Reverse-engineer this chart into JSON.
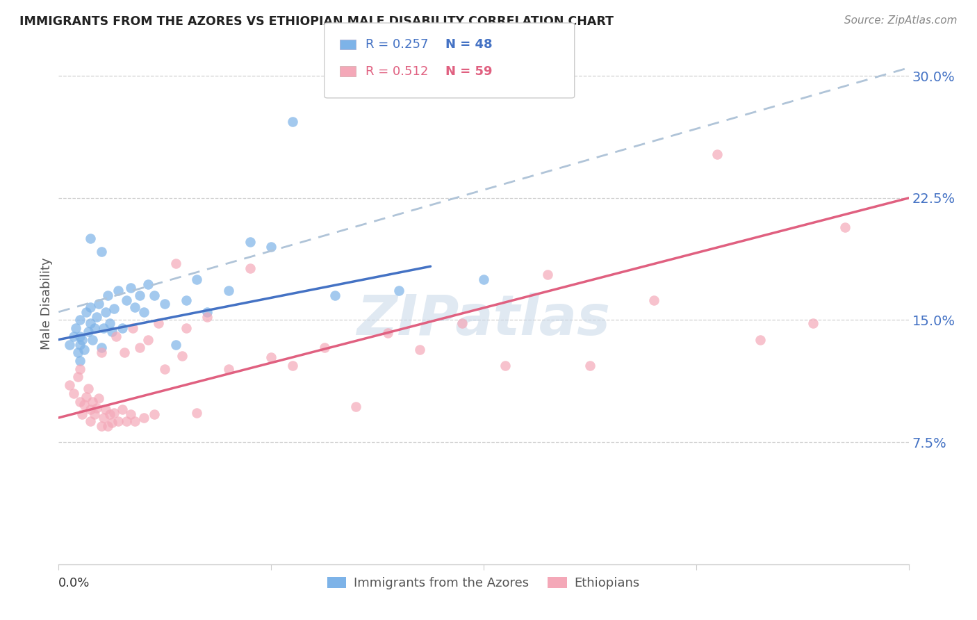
{
  "title": "IMMIGRANTS FROM THE AZORES VS ETHIOPIAN MALE DISABILITY CORRELATION CHART",
  "source": "Source: ZipAtlas.com",
  "ylabel": "Male Disability",
  "xlim": [
    0.0,
    0.4
  ],
  "ylim": [
    0.0,
    0.32
  ],
  "watermark": "ZIPatlas",
  "legend_r1": "R = 0.257",
  "legend_n1": "N = 48",
  "legend_r2": "R = 0.512",
  "legend_n2": "N = 59",
  "legend_label1": "Immigrants from the Azores",
  "legend_label2": "Ethiopians",
  "blue_dot_color": "#7db3e8",
  "pink_dot_color": "#f4a8b8",
  "blue_line_color": "#4472c4",
  "pink_line_color": "#e06080",
  "dashed_line_color": "#b0c4d8",
  "blue_line_x": [
    0.0,
    0.175
  ],
  "blue_line_y": [
    0.138,
    0.183
  ],
  "pink_line_x": [
    0.0,
    0.4
  ],
  "pink_line_y": [
    0.09,
    0.225
  ],
  "dashed_line_x": [
    0.0,
    0.4
  ],
  "dashed_line_y": [
    0.155,
    0.305
  ],
  "azores_x": [
    0.005,
    0.007,
    0.008,
    0.009,
    0.01,
    0.01,
    0.01,
    0.01,
    0.011,
    0.012,
    0.013,
    0.014,
    0.015,
    0.015,
    0.015,
    0.016,
    0.017,
    0.018,
    0.019,
    0.02,
    0.02,
    0.021,
    0.022,
    0.023,
    0.024,
    0.025,
    0.026,
    0.028,
    0.03,
    0.032,
    0.034,
    0.036,
    0.038,
    0.04,
    0.042,
    0.045,
    0.05,
    0.055,
    0.06,
    0.065,
    0.07,
    0.08,
    0.09,
    0.1,
    0.11,
    0.13,
    0.16,
    0.2
  ],
  "azores_y": [
    0.135,
    0.14,
    0.145,
    0.13,
    0.125,
    0.135,
    0.14,
    0.15,
    0.138,
    0.132,
    0.155,
    0.143,
    0.148,
    0.158,
    0.2,
    0.138,
    0.145,
    0.152,
    0.16,
    0.133,
    0.192,
    0.145,
    0.155,
    0.165,
    0.148,
    0.143,
    0.157,
    0.168,
    0.145,
    0.162,
    0.17,
    0.158,
    0.165,
    0.155,
    0.172,
    0.165,
    0.16,
    0.135,
    0.162,
    0.175,
    0.155,
    0.168,
    0.198,
    0.195,
    0.272,
    0.165,
    0.168,
    0.175
  ],
  "ethiopian_x": [
    0.005,
    0.007,
    0.009,
    0.01,
    0.01,
    0.011,
    0.012,
    0.013,
    0.014,
    0.015,
    0.015,
    0.016,
    0.017,
    0.018,
    0.019,
    0.02,
    0.02,
    0.021,
    0.022,
    0.023,
    0.024,
    0.025,
    0.026,
    0.027,
    0.028,
    0.03,
    0.031,
    0.032,
    0.034,
    0.035,
    0.036,
    0.038,
    0.04,
    0.042,
    0.045,
    0.047,
    0.05,
    0.055,
    0.058,
    0.06,
    0.065,
    0.07,
    0.08,
    0.09,
    0.1,
    0.11,
    0.125,
    0.14,
    0.155,
    0.17,
    0.19,
    0.21,
    0.23,
    0.25,
    0.28,
    0.31,
    0.33,
    0.355,
    0.37
  ],
  "ethiopian_y": [
    0.11,
    0.105,
    0.115,
    0.1,
    0.12,
    0.092,
    0.098,
    0.103,
    0.108,
    0.088,
    0.095,
    0.1,
    0.092,
    0.096,
    0.102,
    0.085,
    0.13,
    0.09,
    0.095,
    0.085,
    0.092,
    0.087,
    0.093,
    0.14,
    0.088,
    0.095,
    0.13,
    0.088,
    0.092,
    0.145,
    0.088,
    0.133,
    0.09,
    0.138,
    0.092,
    0.148,
    0.12,
    0.185,
    0.128,
    0.145,
    0.093,
    0.152,
    0.12,
    0.182,
    0.127,
    0.122,
    0.133,
    0.097,
    0.142,
    0.132,
    0.148,
    0.122,
    0.178,
    0.122,
    0.162,
    0.252,
    0.138,
    0.148,
    0.207
  ]
}
